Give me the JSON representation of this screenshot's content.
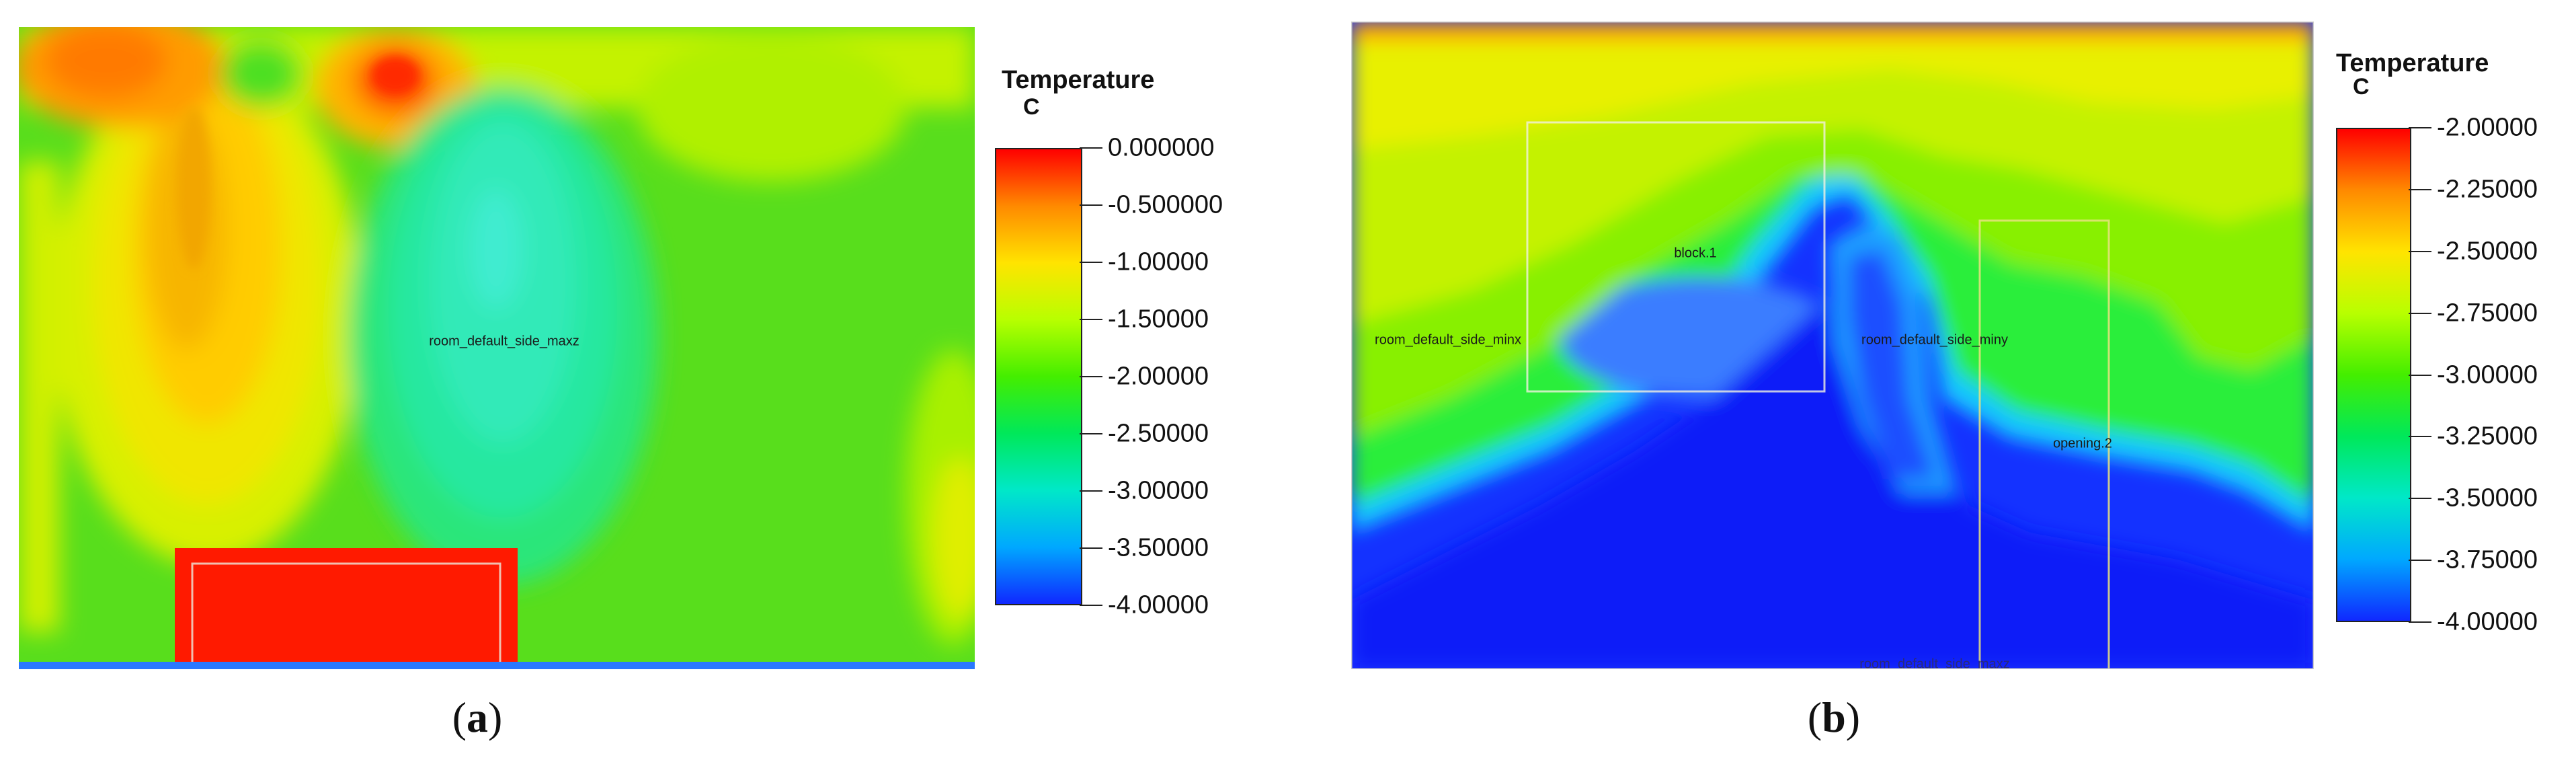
{
  "panel_a": {
    "legend_title": "Temperature",
    "legend_unit": "C",
    "ticks": [
      "0.000000",
      "-0.500000",
      "-1.00000",
      "-1.50000",
      "-2.00000",
      "-2.50000",
      "-3.00000",
      "-3.50000",
      "-4.00000"
    ],
    "colors": [
      "#ff0000",
      "#ff8a00",
      "#ffe400",
      "#b8ff00",
      "#44ee00",
      "#00e85a",
      "#00e8c8",
      "#00a8ff",
      "#1028ff"
    ],
    "labels": {
      "side_maxz": "room_default_side_maxz"
    },
    "caption_letter": "a"
  },
  "panel_b": {
    "legend_title": "Temperature",
    "legend_unit": "C",
    "ticks": [
      "-2.00000",
      "-2.25000",
      "-2.50000",
      "-2.75000",
      "-3.00000",
      "-3.25000",
      "-3.50000",
      "-3.75000",
      "-4.00000"
    ],
    "colors": [
      "#ff0000",
      "#ff8a00",
      "#ffe400",
      "#b8ff00",
      "#44ee00",
      "#00e85a",
      "#00e8c8",
      "#00a8ff",
      "#1028ff"
    ],
    "labels": {
      "block": "block.1",
      "side_minx": "room_default_side_minx",
      "side_miny": "room_default_side_miny",
      "opening": "opening.2",
      "side_bottom": "room_default_side_maxz"
    },
    "caption_letter": "b"
  }
}
